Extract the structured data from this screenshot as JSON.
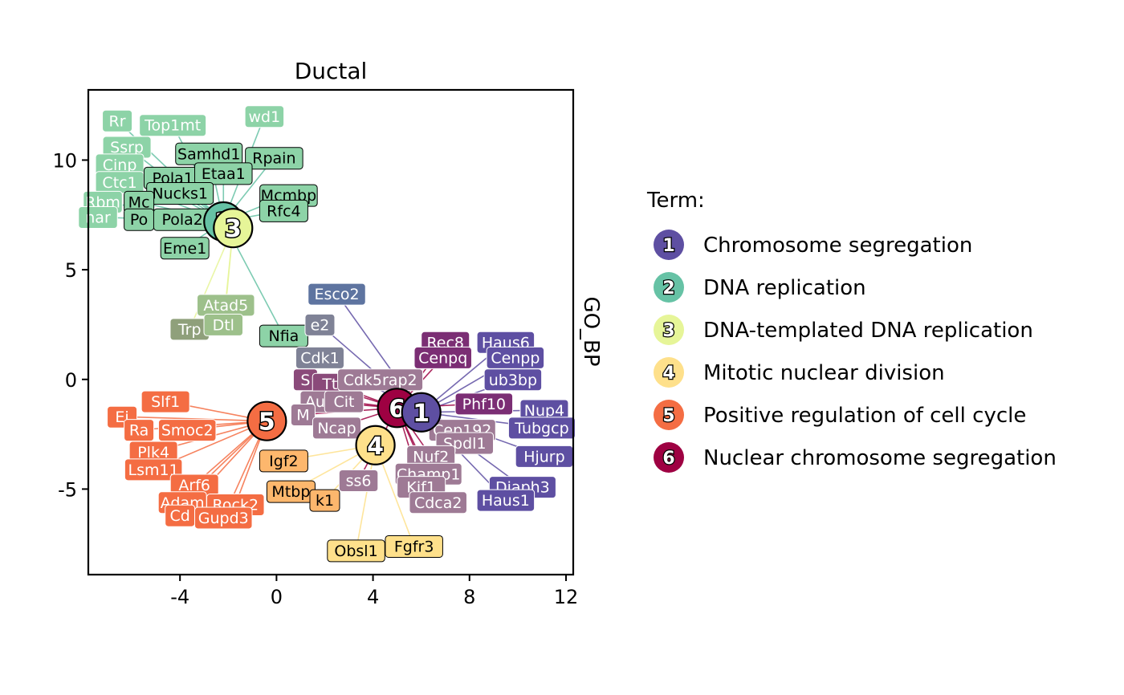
{
  "chart_data": {
    "type": "network",
    "title": "Ductal",
    "strip_label": "GO_BP",
    "xlim": [
      -7.8,
      12.3
    ],
    "ylim": [
      -8.9,
      13.2
    ],
    "x_ticks": [
      -4,
      0,
      4,
      8,
      12
    ],
    "x_tick_labels": [
      "-4",
      "0",
      "4",
      "8",
      "12"
    ],
    "y_ticks": [
      -5,
      0,
      5,
      10
    ],
    "y_tick_labels": [
      "-5",
      "0",
      "5",
      "10"
    ],
    "legend": {
      "title": "Term:",
      "entries": [
        {
          "id": "1",
          "label": "Chromosome segregation",
          "color": "#5E4FA2"
        },
        {
          "id": "2",
          "label": "DNA replication",
          "color": "#66C2A5"
        },
        {
          "id": "3",
          "label": "DNA-templated DNA replication",
          "color": "#E6F598"
        },
        {
          "id": "4",
          "label": "Mitotic nuclear division",
          "color": "#FEE08B"
        },
        {
          "id": "5",
          "label": "Positive regulation of cell cycle",
          "color": "#F46D43"
        },
        {
          "id": "6",
          "label": "Nuclear chromosome segregation",
          "color": "#9E0142"
        }
      ]
    },
    "term_nodes": [
      {
        "id": "2",
        "x": -2.2,
        "y": 7.2,
        "color": "#66C2A5"
      },
      {
        "id": "3",
        "x": -1.8,
        "y": 6.9,
        "color": "#E6F598"
      },
      {
        "id": "5",
        "x": -0.4,
        "y": -1.9,
        "color": "#F46D43"
      },
      {
        "id": "4",
        "x": 4.1,
        "y": -3.0,
        "color": "#FEE08B"
      },
      {
        "id": "6",
        "x": 5.0,
        "y": -1.3,
        "color": "#9E0142"
      },
      {
        "id": "1",
        "x": 6.0,
        "y": -1.5,
        "color": "#5E4FA2"
      }
    ],
    "genes": [
      {
        "label": "Rr",
        "x": -6.6,
        "y": 11.8,
        "color": "#8DD3A7",
        "text_color": "#ffffff",
        "term": "2"
      },
      {
        "label": "Top1mt",
        "x": -4.3,
        "y": 11.6,
        "color": "#8DD3A7",
        "text_color": "#ffffff",
        "term": "2"
      },
      {
        "label": "wd1",
        "x": -0.5,
        "y": 12.0,
        "color": "#8DD3A7",
        "text_color": "#ffffff",
        "term": "2"
      },
      {
        "label": "Ssrp",
        "x": -6.2,
        "y": 10.6,
        "color": "#8DD3A7",
        "text_color": "#ffffff",
        "term": "2"
      },
      {
        "label": "Cinp",
        "x": -6.5,
        "y": 9.8,
        "color": "#8DD3A7",
        "text_color": "#ffffff",
        "term": "2"
      },
      {
        "label": "Ctc1",
        "x": -6.5,
        "y": 9.0,
        "color": "#8DD3A7",
        "text_color": "#ffffff",
        "term": "2"
      },
      {
        "label": "Rbm",
        "x": -7.2,
        "y": 8.1,
        "color": "#8DD3A7",
        "text_color": "#ffffff",
        "term": "2"
      },
      {
        "label": "nar",
        "x": -7.4,
        "y": 7.4,
        "color": "#8DD3A7",
        "text_color": "#ffffff",
        "term": "2"
      },
      {
        "label": "Samhd1",
        "x": -2.8,
        "y": 10.3,
        "color": "#8DD3A7",
        "text_color": "#000000",
        "term": "2"
      },
      {
        "label": "Rpain",
        "x": -0.1,
        "y": 10.1,
        "color": "#8DD3A7",
        "text_color": "#000000",
        "term": "2"
      },
      {
        "label": "Pola1",
        "x": -4.3,
        "y": 9.2,
        "color": "#8DD3A7",
        "text_color": "#000000",
        "term": "2"
      },
      {
        "label": "Etaa1",
        "x": -2.2,
        "y": 9.4,
        "color": "#8DD3A7",
        "text_color": "#000000",
        "term": "2"
      },
      {
        "label": "Nucks1",
        "x": -4.0,
        "y": 8.5,
        "color": "#8DD3A7",
        "text_color": "#000000",
        "term": "2"
      },
      {
        "label": "Mcmbp",
        "x": 0.5,
        "y": 8.4,
        "color": "#8DD3A7",
        "text_color": "#000000",
        "term": "2"
      },
      {
        "label": "Mc",
        "x": -5.7,
        "y": 8.1,
        "color": "#8DD3A7",
        "text_color": "#000000",
        "term": "2"
      },
      {
        "label": "Rfc4",
        "x": 0.3,
        "y": 7.7,
        "color": "#8DD3A7",
        "text_color": "#000000",
        "term": "2"
      },
      {
        "label": "Po",
        "x": -5.7,
        "y": 7.3,
        "color": "#8DD3A7",
        "text_color": "#000000",
        "term": "2"
      },
      {
        "label": "Pola2",
        "x": -3.9,
        "y": 7.3,
        "color": "#8DD3A7",
        "text_color": "#000000",
        "term": "2"
      },
      {
        "label": "Eme1",
        "x": -3.8,
        "y": 6.0,
        "color": "#8DD3A7",
        "text_color": "#000000",
        "term": "2"
      },
      {
        "label": "Esco2",
        "x": 2.5,
        "y": 3.9,
        "color": "#5E74A0",
        "text_color": "#ffffff",
        "term": "1"
      },
      {
        "label": "Atad5",
        "x": -2.1,
        "y": 3.4,
        "color": "#9DC08B",
        "text_color": "#ffffff",
        "term": "3"
      },
      {
        "label": "Trp",
        "x": -3.6,
        "y": 2.3,
        "color": "#8FA07B",
        "text_color": "#ffffff",
        "term": "3"
      },
      {
        "label": "Dtl",
        "x": -2.2,
        "y": 2.5,
        "color": "#9DC08B",
        "text_color": "#ffffff",
        "term": "3"
      },
      {
        "label": "Nfia",
        "x": 0.3,
        "y": 2.0,
        "color": "#8DD3A7",
        "text_color": "#000000",
        "term": "2"
      },
      {
        "label": "e2",
        "x": 1.8,
        "y": 2.5,
        "color": "#7F8296",
        "text_color": "#ffffff",
        "term": "1"
      },
      {
        "label": "Cdk1",
        "x": 1.8,
        "y": 1.0,
        "color": "#7F8296",
        "text_color": "#ffffff",
        "term": "1"
      },
      {
        "label": "Rec8",
        "x": 7.0,
        "y": 1.7,
        "color": "#7B2E74",
        "text_color": "#ffffff",
        "term": "6"
      },
      {
        "label": "Haus6",
        "x": 9.5,
        "y": 1.7,
        "color": "#5E4FA2",
        "text_color": "#ffffff",
        "term": "1"
      },
      {
        "label": "Cenpq",
        "x": 6.9,
        "y": 1.0,
        "color": "#7B2E74",
        "text_color": "#ffffff",
        "term": "6"
      },
      {
        "label": "Cenpp",
        "x": 9.9,
        "y": 1.0,
        "color": "#5E4FA2",
        "text_color": "#ffffff",
        "term": "1"
      },
      {
        "label": "S",
        "x": 1.2,
        "y": -0.0,
        "color": "#8A4A7A",
        "text_color": "#ffffff",
        "term": "6"
      },
      {
        "label": "Ttl",
        "x": 2.3,
        "y": -0.2,
        "color": "#8A4A7A",
        "text_color": "#ffffff",
        "term": "6"
      },
      {
        "label": "Cdk5rap2",
        "x": 4.3,
        "y": 0.0,
        "color": "#9E7A95",
        "text_color": "#ffffff",
        "term": "6"
      },
      {
        "label": "ub3bp",
        "x": 9.8,
        "y": -0.0,
        "color": "#5E4FA2",
        "text_color": "#ffffff",
        "term": "1"
      },
      {
        "label": "Au",
        "x": 1.6,
        "y": -1.0,
        "color": "#9E7A95",
        "text_color": "#ffffff",
        "term": "6"
      },
      {
        "label": "Cit",
        "x": 2.8,
        "y": -1.0,
        "color": "#9E7A95",
        "text_color": "#ffffff",
        "term": "6"
      },
      {
        "label": "Phf10",
        "x": 8.6,
        "y": -1.1,
        "color": "#7B2E74",
        "text_color": "#ffffff",
        "term": "6"
      },
      {
        "label": "Nup4",
        "x": 11.1,
        "y": -1.4,
        "color": "#5E4FA2",
        "text_color": "#ffffff",
        "term": "1"
      },
      {
        "label": "M",
        "x": 1.1,
        "y": -1.6,
        "color": "#9E7A95",
        "text_color": "#ffffff",
        "term": "6"
      },
      {
        "label": "Ncap",
        "x": 2.5,
        "y": -2.2,
        "color": "#9E7A95",
        "text_color": "#ffffff",
        "term": "6"
      },
      {
        "label": "Cep192",
        "x": 7.7,
        "y": -2.3,
        "color": "#9E7A95",
        "text_color": "#ffffff",
        "term": "6"
      },
      {
        "label": "Tubgcp",
        "x": 11.0,
        "y": -2.2,
        "color": "#5E4FA2",
        "text_color": "#ffffff",
        "term": "1"
      },
      {
        "label": "Spdl1",
        "x": 7.8,
        "y": -2.9,
        "color": "#9E7A95",
        "text_color": "#ffffff",
        "term": "6"
      },
      {
        "label": "Hjurp",
        "x": 11.1,
        "y": -3.5,
        "color": "#5E4FA2",
        "text_color": "#ffffff",
        "term": "1"
      },
      {
        "label": "Nuf2",
        "x": 6.4,
        "y": -3.5,
        "color": "#9E7A95",
        "text_color": "#ffffff",
        "term": "6"
      },
      {
        "label": "Champ1",
        "x": 6.3,
        "y": -4.3,
        "color": "#9E7A95",
        "text_color": "#ffffff",
        "term": "6"
      },
      {
        "label": "ss6",
        "x": 3.4,
        "y": -4.6,
        "color": "#9E7A95",
        "text_color": "#ffffff",
        "term": "6"
      },
      {
        "label": "Kif1",
        "x": 6.0,
        "y": -4.9,
        "color": "#9E7A95",
        "text_color": "#ffffff",
        "term": "6"
      },
      {
        "label": "Diaph3",
        "x": 10.2,
        "y": -4.9,
        "color": "#5E4FA2",
        "text_color": "#ffffff",
        "term": "1"
      },
      {
        "label": "Haus1",
        "x": 9.5,
        "y": -5.5,
        "color": "#5E4FA2",
        "text_color": "#ffffff",
        "term": "1"
      },
      {
        "label": "Cdca2",
        "x": 6.7,
        "y": -5.6,
        "color": "#9E7A95",
        "text_color": "#ffffff",
        "term": "6"
      },
      {
        "label": "Slf1",
        "x": -4.6,
        "y": -1.0,
        "color": "#F46D43",
        "text_color": "#ffffff",
        "term": "5"
      },
      {
        "label": "Ei",
        "x": -6.4,
        "y": -1.7,
        "color": "#F46D43",
        "text_color": "#ffffff",
        "term": "5"
      },
      {
        "label": "Ra",
        "x": -5.7,
        "y": -2.3,
        "color": "#F46D43",
        "text_color": "#ffffff",
        "term": "5"
      },
      {
        "label": "Smoc2",
        "x": -3.7,
        "y": -2.3,
        "color": "#F46D43",
        "text_color": "#ffffff",
        "term": "5"
      },
      {
        "label": "Plk4",
        "x": -5.1,
        "y": -3.3,
        "color": "#F46D43",
        "text_color": "#ffffff",
        "term": "5"
      },
      {
        "label": "Lsm11",
        "x": -5.1,
        "y": -4.1,
        "color": "#F46D43",
        "text_color": "#ffffff",
        "term": "5"
      },
      {
        "label": "Arf6",
        "x": -3.4,
        "y": -4.8,
        "color": "#F46D43",
        "text_color": "#ffffff",
        "term": "5"
      },
      {
        "label": "Adam",
        "x": -3.9,
        "y": -5.6,
        "color": "#F46D43",
        "text_color": "#ffffff",
        "term": "5"
      },
      {
        "label": "Rock2",
        "x": -1.7,
        "y": -5.7,
        "color": "#F46D43",
        "text_color": "#ffffff",
        "term": "5"
      },
      {
        "label": "Cd",
        "x": -4.0,
        "y": -6.2,
        "color": "#F46D43",
        "text_color": "#ffffff",
        "term": "5"
      },
      {
        "label": "Gupd3",
        "x": -2.2,
        "y": -6.3,
        "color": "#F46D43",
        "text_color": "#ffffff",
        "term": "5"
      },
      {
        "label": "Igf2",
        "x": 0.3,
        "y": -3.7,
        "color": "#FDB76D",
        "text_color": "#000000",
        "term": "4"
      },
      {
        "label": "Mtbp",
        "x": 0.6,
        "y": -5.1,
        "color": "#FDB76D",
        "text_color": "#000000",
        "term": "4"
      },
      {
        "label": "k1",
        "x": 2.0,
        "y": -5.5,
        "color": "#FDB76D",
        "text_color": "#000000",
        "term": "4"
      },
      {
        "label": "Obsl1",
        "x": 3.3,
        "y": -7.8,
        "color": "#FEE08B",
        "text_color": "#000000",
        "term": "4"
      },
      {
        "label": "Fgfr3",
        "x": 5.7,
        "y": -7.6,
        "color": "#FEE08B",
        "text_color": "#000000",
        "term": "4"
      }
    ]
  }
}
